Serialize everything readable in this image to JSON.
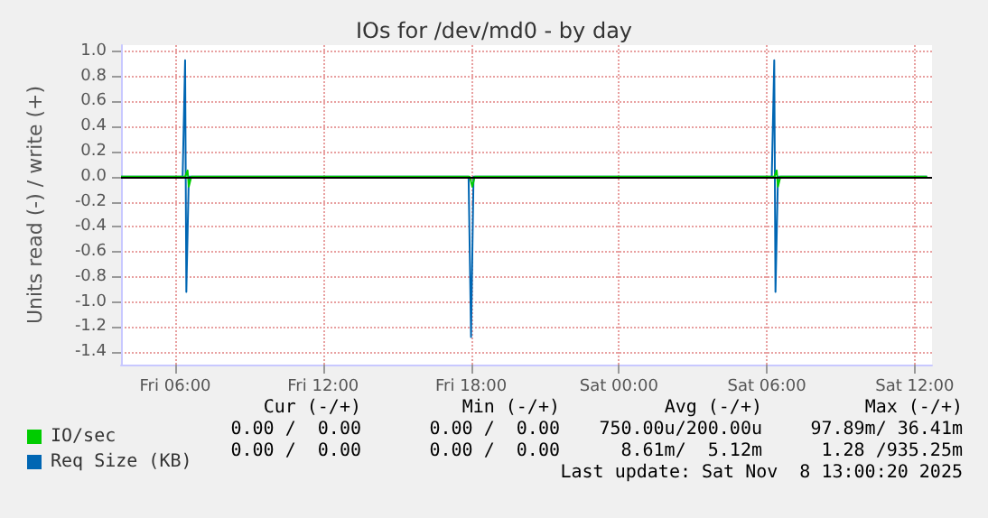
{
  "chart_data": {
    "type": "line",
    "title": "IOs for /dev/md0 - by day",
    "ylabel": "Units read (-) / write (+)",
    "xlim": [
      "2025-11-07T03:48",
      "2025-11-08T12:42"
    ],
    "ylim": [
      -1.5,
      1.05
    ],
    "xticks": [
      {
        "value": "2025-11-07T06:00",
        "label": "Fri 06:00"
      },
      {
        "value": "2025-11-07T12:00",
        "label": "Fri 12:00"
      },
      {
        "value": "2025-11-07T18:00",
        "label": "Fri 18:00"
      },
      {
        "value": "2025-11-08T00:00",
        "label": "Sat 00:00"
      },
      {
        "value": "2025-11-08T06:00",
        "label": "Sat 06:00"
      },
      {
        "value": "2025-11-08T12:00",
        "label": "Sat 12:00"
      }
    ],
    "yticks": [
      -1.4,
      -1.2,
      {
        "value": -1,
        "label": "-1.0"
      },
      -0.8,
      -0.6,
      -0.4,
      -0.2,
      {
        "value": 0,
        "label": "0.0"
      },
      0.2,
      0.4,
      0.6,
      0.8,
      {
        "value": 1,
        "label": "1.0"
      }
    ],
    "series": [
      {
        "name": "Req Size (KB)",
        "color": "#0066b3",
        "x": [
          "2025-11-07T03:48",
          "2025-11-07T06:18",
          "2025-11-07T06:24",
          "2025-11-07T06:27",
          "2025-11-07T06:33",
          "2025-11-07T17:54",
          "2025-11-07T18:00",
          "2025-11-07T18:06",
          "2025-11-08T06:12",
          "2025-11-08T06:18",
          "2025-11-08T06:21",
          "2025-11-08T06:27",
          "2025-11-08T12:30"
        ],
        "values": [
          0,
          0,
          0.93,
          -0.92,
          0,
          0,
          -1.28,
          0,
          0,
          0.93,
          -0.92,
          0,
          0
        ]
      },
      {
        "name": "IO/sec",
        "color": "#00cc00",
        "x": [
          "2025-11-07T03:48",
          "2025-11-07T06:24",
          "2025-11-07T06:30",
          "2025-11-07T06:33",
          "2025-11-07T06:39",
          "2025-11-07T17:57",
          "2025-11-07T18:03",
          "2025-11-07T18:09",
          "2025-11-08T06:18",
          "2025-11-08T06:24",
          "2025-11-08T06:27",
          "2025-11-08T06:33",
          "2025-11-08T12:30"
        ],
        "values": [
          0,
          0,
          0.05,
          -0.08,
          0,
          0,
          -0.08,
          0,
          0,
          0.05,
          -0.08,
          0,
          0
        ]
      }
    ],
    "ref_lines": [
      {
        "axis": "y",
        "value": 0,
        "color": "#000000"
      }
    ],
    "grid": true,
    "legend": "bottom left",
    "marker": "none",
    "line_style": "solid",
    "annotations": [
      "Cur (-/+)",
      "Min (-/+)",
      "Avg (-/+)",
      "Max (-/+)",
      "0.00 /  0.00",
      "0.00 /  0.00",
      "750.00u/200.00u",
      "97.89m/ 36.41m",
      "0.00 /  0.00",
      "0.00 /  0.00",
      "8.61m/  5.12m",
      "1.28 /935.25m",
      "Last update: Sat Nov  8 13:00:20 2025"
    ]
  }
}
